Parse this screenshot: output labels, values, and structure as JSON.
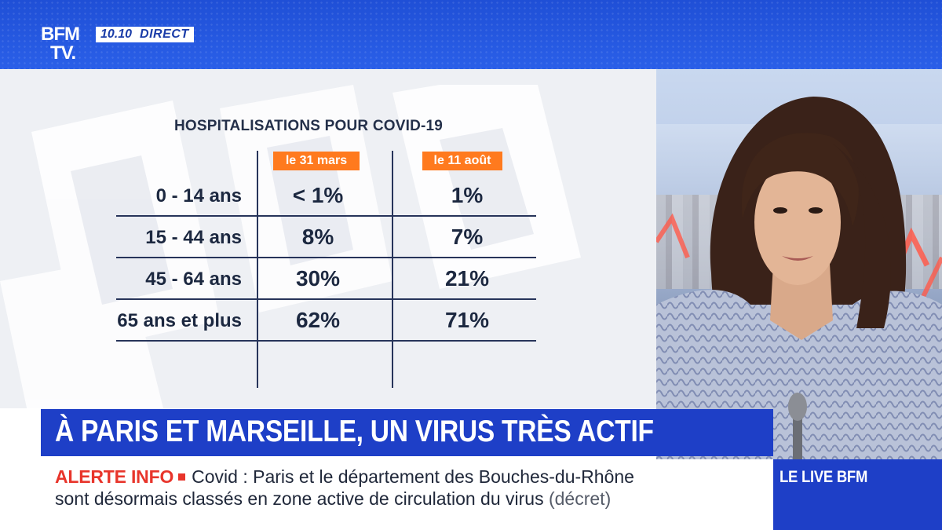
{
  "channel": {
    "logo_top": "BFM",
    "logo_bottom": "TV.",
    "time": "10.10",
    "status": "DIRECT"
  },
  "table": {
    "title": "HOSPITALISATIONS POUR COVID-19",
    "columns": [
      "le 31 mars",
      "le 11 août"
    ],
    "rows": [
      {
        "label": "0 - 14 ans",
        "values": [
          "< 1%",
          "1%"
        ]
      },
      {
        "label": "15 - 44 ans",
        "values": [
          "8%",
          "7%"
        ]
      },
      {
        "label": "45 - 64 ans",
        "values": [
          "30%",
          "21%"
        ]
      },
      {
        "label": "65 ans et plus",
        "values": [
          "62%",
          "71%"
        ]
      }
    ]
  },
  "headline": "À PARIS ET MARSEILLE, UN VIRUS TRÈS ACTIF",
  "ticker": {
    "alert_label": "ALERTE INFO",
    "line1": "Covid : Paris et le département des Bouches-du-Rhône",
    "line2": "sont désormais classés en zone active de circulation du virus",
    "source": "(décret)"
  },
  "live_label": "LE LIVE BFM",
  "colors": {
    "brand_blue": "#1e3fc7",
    "accent_orange": "#ff7a1e",
    "alert_red": "#e8352b",
    "table_ink": "#1c2840"
  }
}
